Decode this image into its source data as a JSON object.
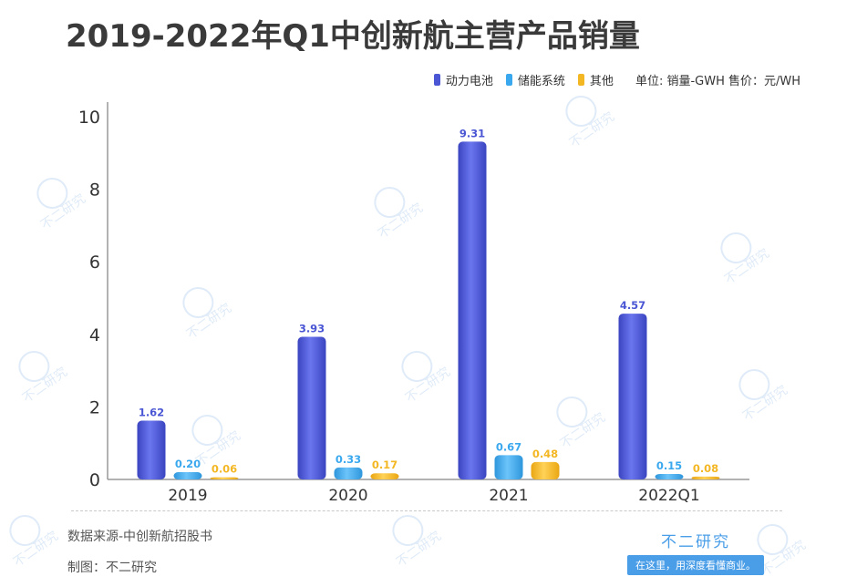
{
  "title": "2019-2022年Q1中创新航主营产品销量",
  "legend": {
    "items": [
      {
        "label": "动力电池",
        "color": "#4a56d4"
      },
      {
        "label": "储能系统",
        "color": "#3aa8ee"
      },
      {
        "label": "其他",
        "color": "#f4b724"
      }
    ],
    "unit_text": "单位: 销量-GWH 售价：元/WH"
  },
  "chart_data": {
    "type": "bar",
    "categories": [
      "2019",
      "2020",
      "2021",
      "2022Q1"
    ],
    "series": [
      {
        "name": "动力电池",
        "values": [
          1.62,
          3.93,
          9.31,
          4.57
        ],
        "color": "#4a56d4"
      },
      {
        "name": "储能系统",
        "values": [
          0.2,
          0.33,
          0.67,
          0.15
        ],
        "color": "#3aa8ee"
      },
      {
        "name": "其他",
        "values": [
          0.06,
          0.17,
          0.48,
          0.08
        ],
        "color": "#f4b724"
      }
    ],
    "y_ticks": [
      0,
      2,
      4,
      6,
      8,
      10
    ],
    "ylim": [
      0,
      10.4
    ],
    "grid": false,
    "legend_position": "top-right"
  },
  "footer": {
    "source": "数据来源-中创新航招股书",
    "maker": "制图：不二研究"
  },
  "brand": {
    "name": "不二研究",
    "slogan": "在这里，用深度看懂商业。"
  },
  "watermark": {
    "text": "不二研究"
  }
}
